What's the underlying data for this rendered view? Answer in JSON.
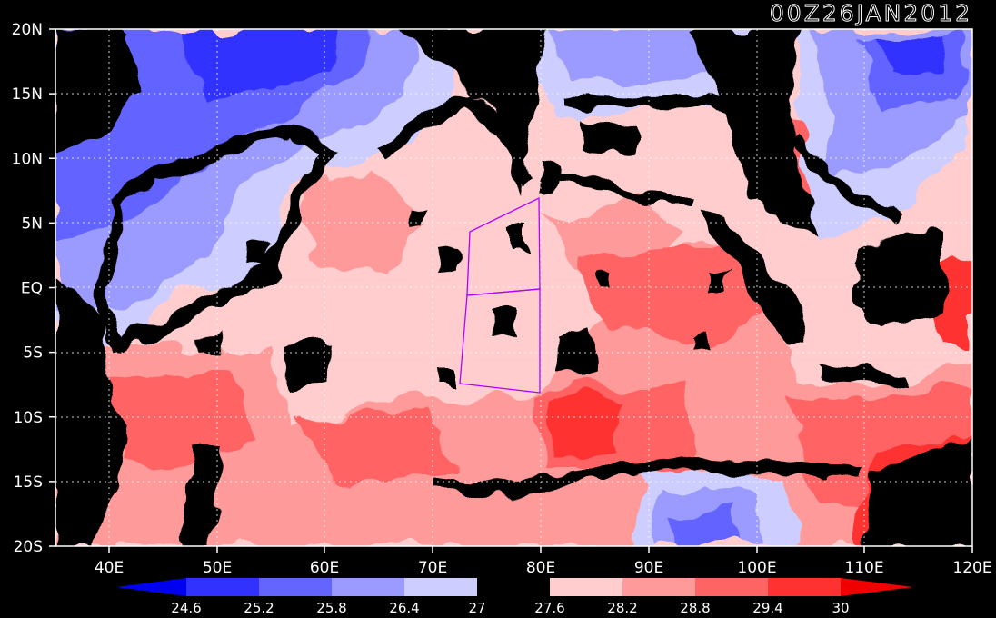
{
  "title": "00Z26JAN2012",
  "map": {
    "lat_labels": [
      "20N",
      "15N",
      "10N",
      "5N",
      "EQ",
      "5S",
      "10S",
      "15S",
      "20S"
    ],
    "lon_labels": [
      "40E",
      "50E",
      "60E",
      "70E",
      "80E",
      "90E",
      "100E",
      "110E",
      "120E"
    ],
    "lat_range": [
      -20,
      20
    ],
    "lon_range": [
      35,
      120
    ],
    "grid": "dotted"
  },
  "colorbar": {
    "levels": [
      "24.6",
      "25.2",
      "25.8",
      "26.4",
      "27",
      "27.6",
      "28.2",
      "28.8",
      "29.4",
      "30"
    ],
    "colors": [
      "#0000f0",
      "#3232ff",
      "#6464ff",
      "#9a9aff",
      "#cdcdff",
      "#000000",
      "#ffcdcd",
      "#ff9a9a",
      "#ff6464",
      "#ff3232",
      "#f00000"
    ]
  },
  "colors": {
    "land": "#000000",
    "box": "#b400ff",
    "frame": "#ffffff"
  }
}
